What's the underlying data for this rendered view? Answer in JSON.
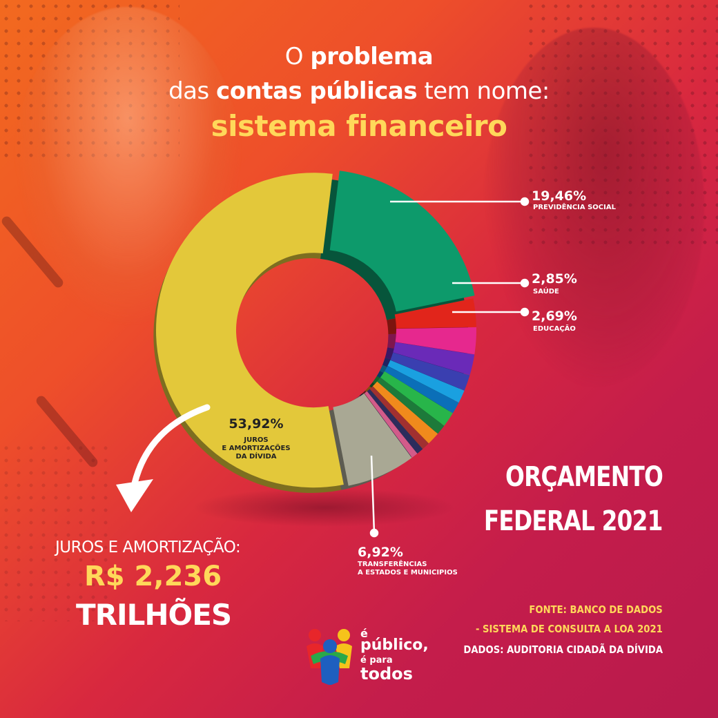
{
  "headline": {
    "line1_prefix": "O ",
    "line1_bold": "problema",
    "line2_prefix": "das ",
    "line2_bold": "contas públicas",
    "line2_suffix": " tem nome:",
    "line3": "sistema financeiro"
  },
  "chart_data": {
    "type": "pie",
    "slices": [
      {
        "label": "JUROS E AMORTIZAÇÕES DA DÍVIDA",
        "value": 53.92,
        "value_label": "53,92%",
        "color": "#e3c83a"
      },
      {
        "label": "PREVIDÊNCIA SOCIAL",
        "value": 19.46,
        "value_label": "19,46%",
        "color": "#0d9a6b"
      },
      {
        "label": "SAÚDE",
        "value": 2.85,
        "value_label": "2,85%",
        "color": "#e1251b"
      },
      {
        "label": "EDUCAÇÃO",
        "value": 2.69,
        "value_label": "2,69%",
        "color": "#e6288e"
      },
      {
        "label": "",
        "value": 2.1,
        "color": "#6a2ab8"
      },
      {
        "label": "",
        "value": 1.6,
        "color": "#3a3fb0"
      },
      {
        "label": "",
        "value": 1.3,
        "color": "#1aa0e0"
      },
      {
        "label": "",
        "value": 1.2,
        "color": "#0b6fb8"
      },
      {
        "label": "",
        "value": 1.5,
        "color": "#28b54a"
      },
      {
        "label": "",
        "value": 1.0,
        "color": "#1d7a3a"
      },
      {
        "label": "",
        "value": 1.3,
        "color": "#f08a1c"
      },
      {
        "label": "",
        "value": 0.8,
        "color": "#a13030"
      },
      {
        "label": "",
        "value": 0.7,
        "color": "#2c2c5c"
      },
      {
        "label": "",
        "value": 0.65,
        "color": "#d25b8a"
      },
      {
        "label": "TRANSFERÊNCIAS A ESTADOS E MUNICIPIOS",
        "value": 6.92,
        "value_label": "6,92%",
        "color": "#a9a894"
      }
    ],
    "labels": {
      "juros": {
        "pct": "53,92%",
        "line1": "JUROS",
        "line2": "E AMORTIZAÇÕES",
        "line3": "DA DÍVIDA"
      },
      "previdencia": {
        "pct": "19,46%",
        "line1": "PREVIDÊNCIA SOCIAL"
      },
      "saude": {
        "pct": "2,85%",
        "line1": "SAÚDE"
      },
      "educacao": {
        "pct": "2,69%",
        "line1": "EDUCAÇÃO"
      },
      "transferencias": {
        "pct": "6,92%",
        "line1": "TRANSFERÊNCIAS",
        "line2": "A ESTADOS E MUNICIPIOS"
      }
    }
  },
  "orcamento": {
    "line1": "ORÇAMENTO",
    "line2": "FEDERAL 2021"
  },
  "amortizacao": {
    "label": "JUROS E AMORTIZAÇÃO:",
    "value": "R$ 2,236",
    "unit": "TRILHÕES"
  },
  "fonte": {
    "line1": "FONTE: BANCO DE DADOS",
    "line2": "- SISTEMA DE CONSULTA A LOA 2021",
    "line3": "DADOS: AUDITORIA CIDADÃ DA DÍVIDA"
  },
  "logo": {
    "line1": "é",
    "line2": "público,",
    "line3": "é para",
    "line4": "todos"
  },
  "colors": {
    "accent_yellow": "#ffd85a",
    "bg_orange": "#f26a1f",
    "bg_magenta": "#c41d4b"
  }
}
